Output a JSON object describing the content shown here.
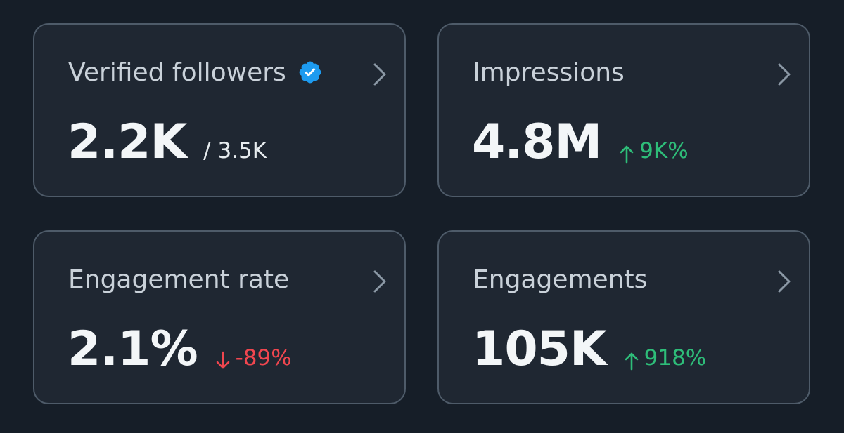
{
  "colors": {
    "background": "#161e28",
    "card_background": "#1f2732",
    "card_border": "#4e5b69",
    "title_text": "#c9d1d9",
    "value_text": "#f3f6f8",
    "verified_badge": "#1d9bf0",
    "positive": "#2ebd79",
    "negative": "#f0464f"
  },
  "cards": [
    {
      "title": "Verified followers",
      "value": "2.2K",
      "secondary": "/ 3.5K",
      "icon": "verified-badge-icon",
      "action_icon": "chevron-right-icon"
    },
    {
      "title": "Impressions",
      "value": "4.8M",
      "change": "9K%",
      "change_direction": "up",
      "action_icon": "chevron-right-icon"
    },
    {
      "title": "Engagement rate",
      "value": "2.1%",
      "change": "-89%",
      "change_direction": "down",
      "action_icon": "chevron-right-icon"
    },
    {
      "title": "Engagements",
      "value": "105K",
      "change": "918%",
      "change_direction": "up",
      "action_icon": "chevron-right-icon"
    }
  ]
}
